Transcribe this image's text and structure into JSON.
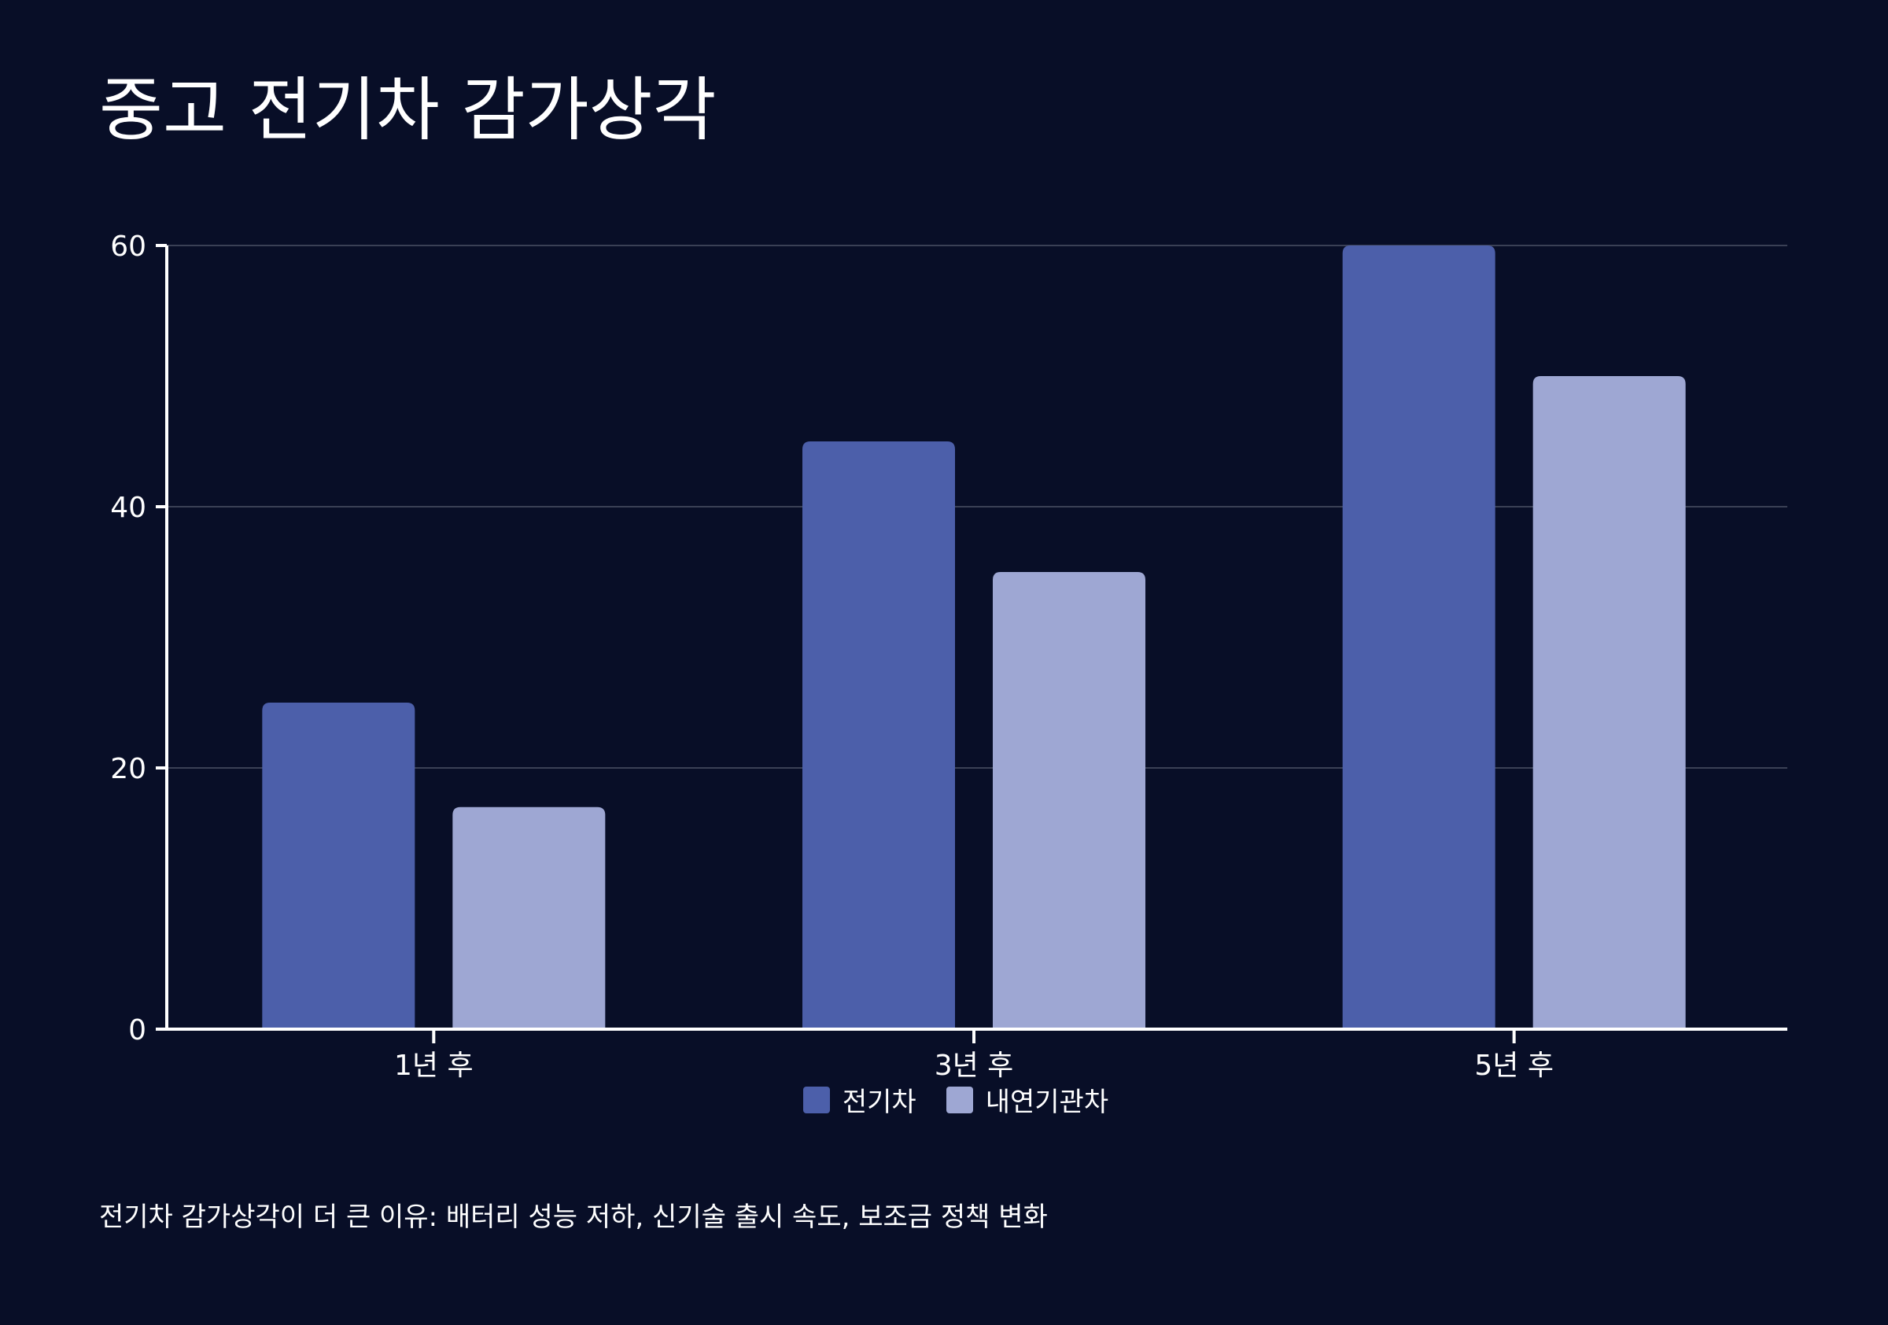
{
  "chart_data": {
    "type": "bar",
    "title": "중고 전기차 감가상각",
    "categories": [
      "1년 후",
      "3년 후",
      "5년 후"
    ],
    "series": [
      {
        "name": "전기차",
        "values": [
          25,
          45,
          60
        ],
        "color": "#4c5faa"
      },
      {
        "name": "내연기관차",
        "values": [
          17,
          35,
          50
        ],
        "color": "#9ea7d3"
      }
    ],
    "xlabel": "",
    "ylabel": "",
    "ylim": [
      0,
      60
    ],
    "yticks": [
      0,
      20,
      40,
      60
    ],
    "grid": true,
    "legend_position": "bottom-center",
    "footnote": "전기차 감가상각이 더 큰 이유: 배터리 성능 저하, 신기술 출시 속도, 보조금 정책 변화"
  },
  "colors": {
    "background": "#080e27",
    "axis": "#ffffff",
    "grid": "#3a4055",
    "text": "#ffffff"
  }
}
